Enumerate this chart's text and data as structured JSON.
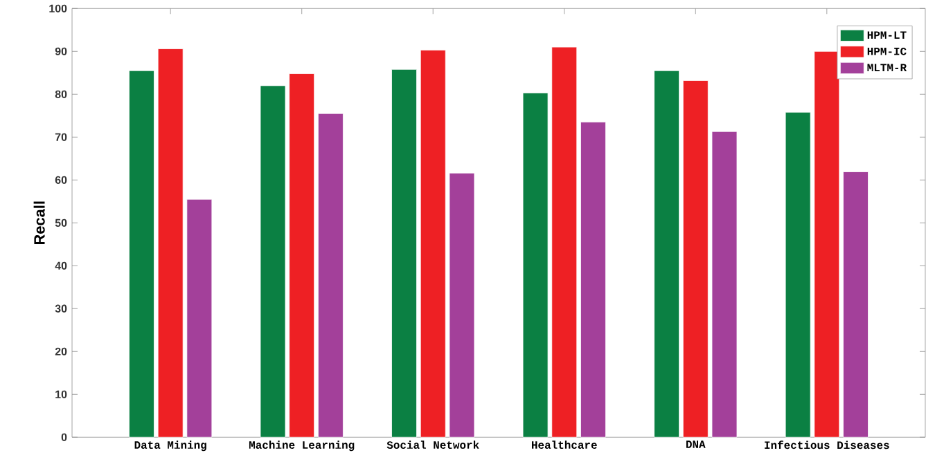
{
  "chart_data": {
    "type": "bar",
    "ylabel": "Recall",
    "categories": [
      "Data Mining",
      "Machine Learning",
      "Social Network",
      "Healthcare",
      "DNA",
      "Infectious Diseases"
    ],
    "series": [
      {
        "name": "HPM-LT",
        "color": "#0b8043",
        "values": [
          85.5,
          82,
          85.8,
          80.3,
          85.5,
          75.8
        ]
      },
      {
        "name": "HPM-IC",
        "color": "#ee2024",
        "values": [
          90.6,
          84.8,
          90.3,
          91,
          83.2,
          90
        ]
      },
      {
        "name": "MLTM-R",
        "color": "#a3409a",
        "values": [
          55.5,
          75.5,
          61.6,
          73.5,
          71.3,
          61.9
        ]
      }
    ],
    "ylim": [
      0,
      100
    ],
    "yticks": [
      0,
      10,
      20,
      30,
      40,
      50,
      60,
      70,
      80,
      90,
      100
    ],
    "grid": false,
    "legend": "top right"
  }
}
